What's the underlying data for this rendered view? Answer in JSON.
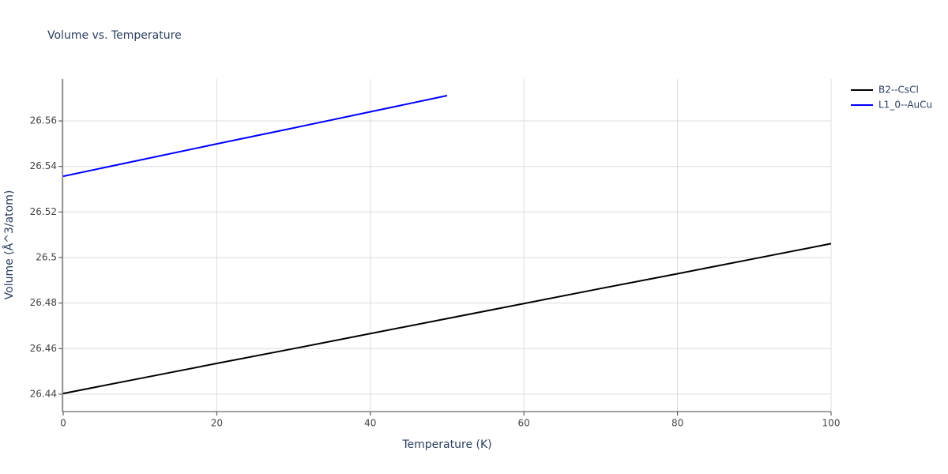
{
  "chart_data": {
    "type": "line",
    "title": "Volume vs. Temperature",
    "x_label": "Temperature (K)",
    "y_label": "Volume (Å^3/atom)",
    "xlim": [
      0,
      100
    ],
    "ylim": [
      26.4327,
      26.5784
    ],
    "xticks": [
      0,
      20,
      40,
      60,
      80,
      100
    ],
    "yticks": [
      26.44,
      26.46,
      26.48,
      26.5,
      26.52,
      26.54,
      26.56
    ],
    "grid": true,
    "legend": "right",
    "series": [
      {
        "name": "B2--CsCl",
        "color": "#000000",
        "x": [
          0,
          10,
          20,
          30,
          40,
          50,
          60,
          70,
          80,
          90,
          100
        ],
        "values": [
          26.4403,
          26.4469,
          26.4535,
          26.46,
          26.4666,
          26.4732,
          26.4798,
          26.4864,
          26.4929,
          26.4995,
          26.5061
        ]
      },
      {
        "name": "L1_0--AuCu",
        "color": "#0000ff",
        "x": [
          0,
          10,
          20,
          30,
          40,
          50
        ],
        "values": [
          26.5357,
          26.5428,
          26.5499,
          26.5569,
          26.564,
          26.5711
        ]
      }
    ]
  }
}
